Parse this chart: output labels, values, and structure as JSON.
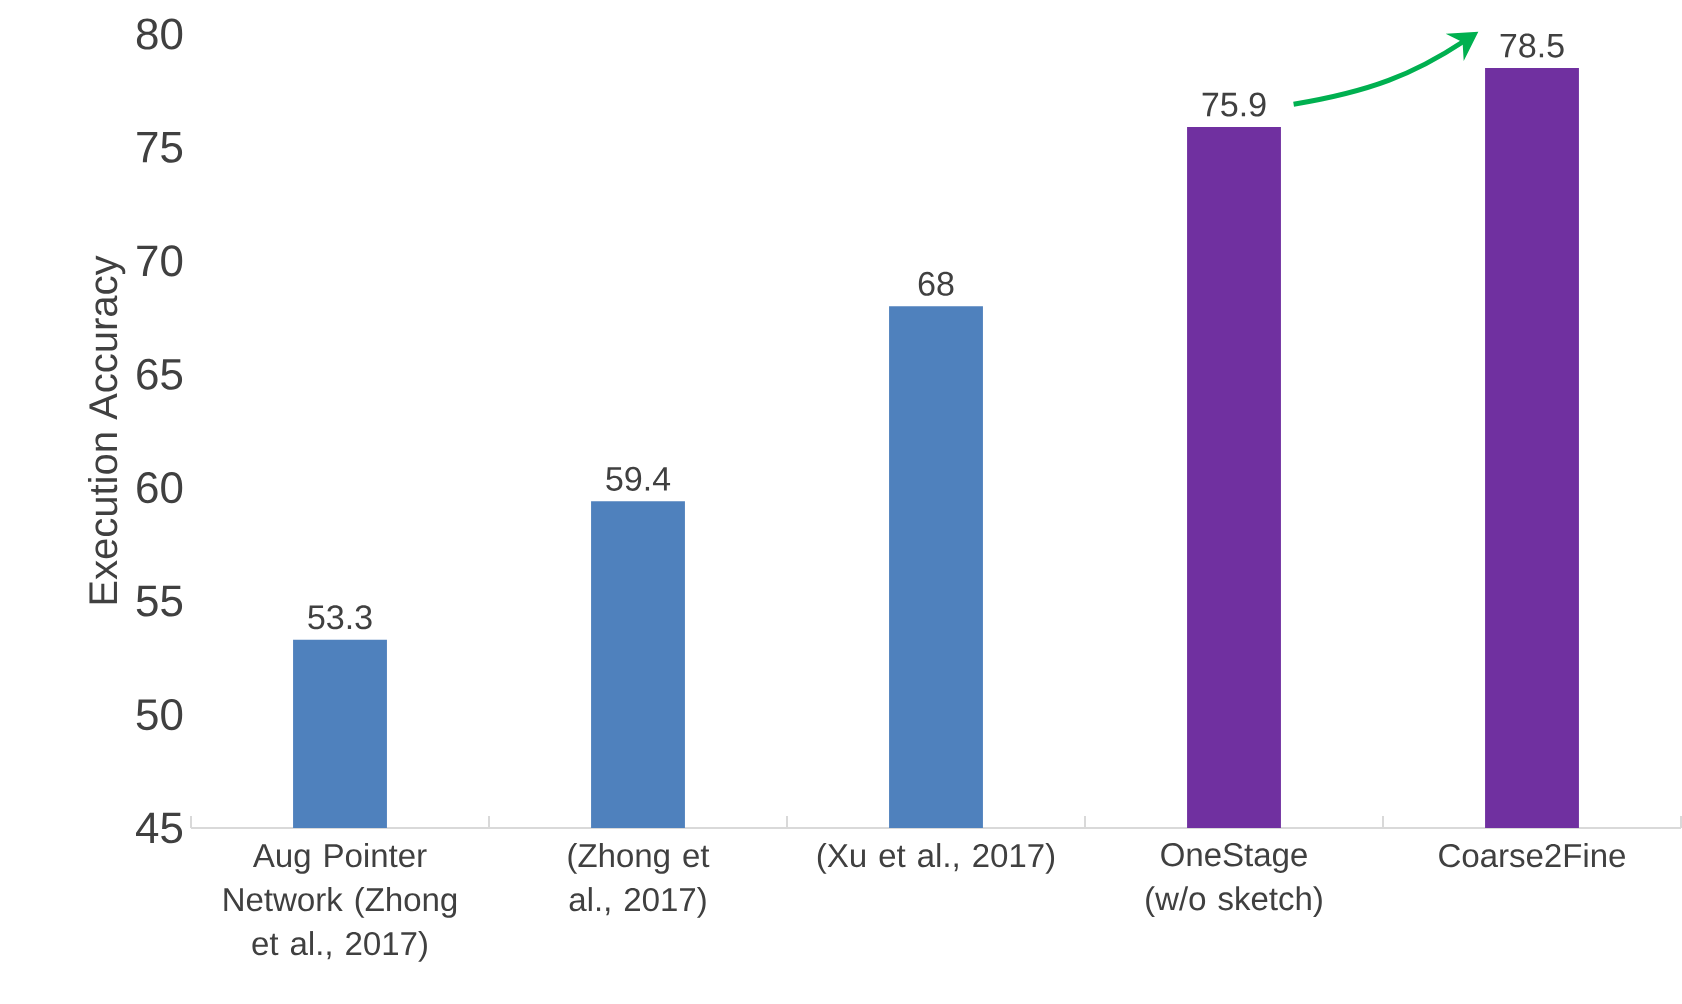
{
  "chart_data": {
    "type": "bar",
    "ylabel": "Execution Accuracy",
    "categories": [
      "Aug Pointer Network (Zhong et al., 2017)",
      "(Zhong et al., 2017)",
      "(Xu et al., 2017)",
      "OneStage (w/o sketch)",
      "Coarse2Fine"
    ],
    "values": [
      53.3,
      59.4,
      68,
      75.9,
      78.5
    ],
    "colors": [
      "#4f81bd",
      "#4f81bd",
      "#4f81bd",
      "#7030a0",
      "#7030a0"
    ],
    "ylim": [
      45,
      80
    ],
    "yticks": [
      45,
      50,
      55,
      60,
      65,
      70,
      75,
      80
    ],
    "grid": false,
    "data_labels": true
  }
}
